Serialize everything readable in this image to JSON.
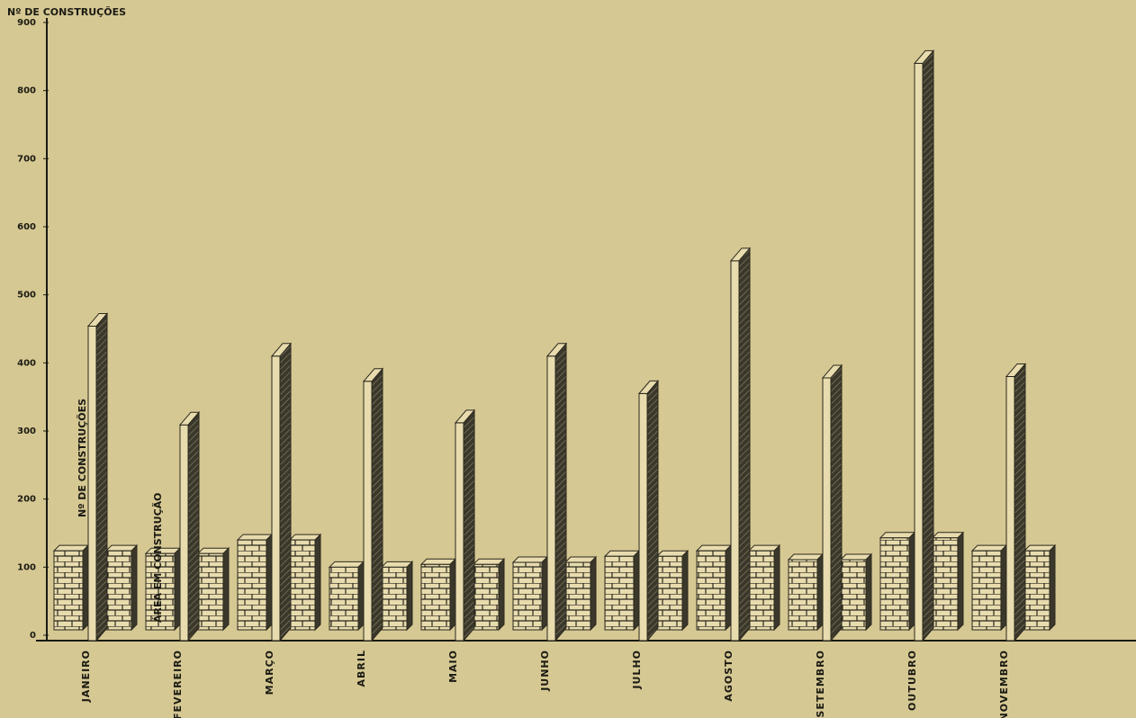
{
  "chart_data": {
    "type": "bar",
    "y_label": "Nº DE CONSTRUÇÕES",
    "categories": [
      "JANEIRO",
      "FEVEREIRO",
      "MARÇO",
      "ABRIL",
      "MAIO",
      "JUNHO",
      "JULHO",
      "AGOSTO",
      "SETEMBRO",
      "OUTUBRO",
      "NOVEMBRO"
    ],
    "series": [
      {
        "name": "Nº DE CONSTRUÇÕES",
        "color": "#2a271d",
        "values": [
          454,
          309,
          410,
          373,
          312,
          410,
          355,
          550,
          378,
          840,
          380
        ]
      },
      {
        "name": "ÁREA EM CONSTRUÇÃO",
        "color": "#e8dcae",
        "values": [
          124,
          120,
          140,
          100,
          104,
          107,
          116,
          124,
          111,
          143,
          124
        ]
      }
    ],
    "ylim": [
      0,
      900
    ],
    "yticks": [
      0,
      100,
      200,
      300,
      400,
      500,
      600,
      700,
      800,
      900
    ]
  }
}
